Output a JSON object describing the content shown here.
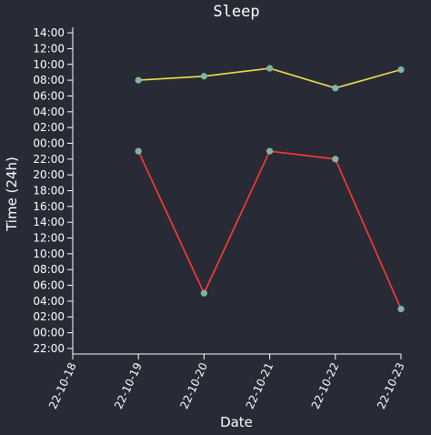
{
  "chart_data": {
    "type": "line",
    "title": "Sleep",
    "xlabel": "Date",
    "ylabel": "Time (24h)",
    "x_ticks": [
      "22-10-18",
      "22-10-19",
      "22-10-20",
      "22-10-21",
      "22-10-22",
      "22-10-23"
    ],
    "y_ticks": [
      "22:00",
      "00:00",
      "02:00",
      "04:00",
      "06:00",
      "08:00",
      "10:00",
      "12:00",
      "14:00",
      "16:00",
      "18:00",
      "20:00",
      "22:00",
      "00:00",
      "02:00",
      "04:00",
      "06:00",
      "08:00",
      "10:00",
      "12:00",
      "14:00"
    ],
    "y_range_hours": [
      -2.7,
      38.7
    ],
    "grid": false,
    "legend": "none",
    "series": [
      {
        "color": "#ff3b2f",
        "marker_color": "#7fb3a6",
        "points": [
          {
            "x": "22-10-19",
            "y": "23:00"
          },
          {
            "x": "22-10-20",
            "y": "05:00"
          },
          {
            "x": "22-10-21",
            "y": "23:00"
          },
          {
            "x": "22-10-22",
            "y": "22:00"
          },
          {
            "x": "22-10-23",
            "y": "03:00"
          }
        ]
      },
      {
        "color": "#f0e04a",
        "marker_color": "#7fb3a6",
        "points": [
          {
            "x": "22-10-19",
            "y": "08:00"
          },
          {
            "x": "22-10-20",
            "y": "08:30"
          },
          {
            "x": "22-10-21",
            "y": "09:30"
          },
          {
            "x": "22-10-22",
            "y": "07:00"
          },
          {
            "x": "22-10-23",
            "y": "09:20"
          }
        ]
      }
    ]
  }
}
